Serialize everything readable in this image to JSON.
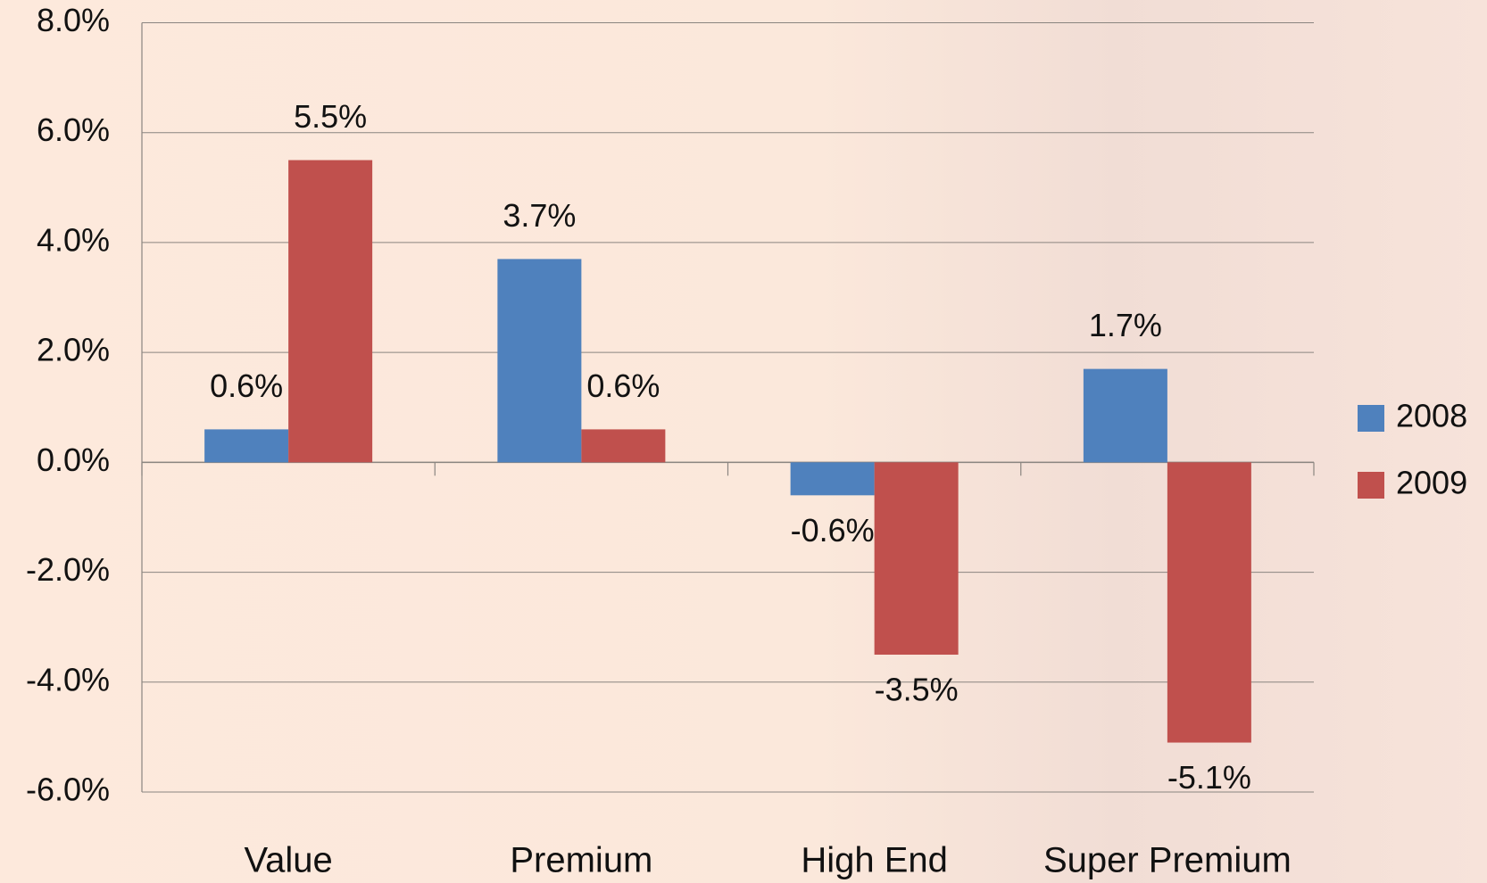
{
  "chart_data": {
    "type": "bar",
    "categories": [
      "Value",
      "Premium",
      "High End",
      "Super Premium"
    ],
    "series": [
      {
        "name": "2008",
        "color": "#4f81bd",
        "values": [
          0.6,
          3.7,
          -0.6,
          1.7
        ],
        "value_labels": [
          "0.6%",
          "3.7%",
          "-0.6%",
          "1.7%"
        ]
      },
      {
        "name": "2009",
        "color": "#c0504d",
        "values": [
          5.5,
          0.6,
          -3.5,
          -5.1
        ],
        "value_labels": [
          "5.5%",
          "0.6%",
          "-3.5%",
          "-5.1%"
        ]
      }
    ],
    "ylim": [
      -6,
      8
    ],
    "yticks": [
      {
        "value": -6,
        "label": "-6.0%"
      },
      {
        "value": -4,
        "label": "-4.0%"
      },
      {
        "value": -2,
        "label": "-2.0%"
      },
      {
        "value": 0,
        "label": "0.0%"
      },
      {
        "value": 2,
        "label": "2.0%"
      },
      {
        "value": 4,
        "label": "4.0%"
      },
      {
        "value": 6,
        "label": "6.0%"
      },
      {
        "value": 8,
        "label": "8.0%"
      }
    ],
    "grid": true,
    "legend": "right"
  }
}
